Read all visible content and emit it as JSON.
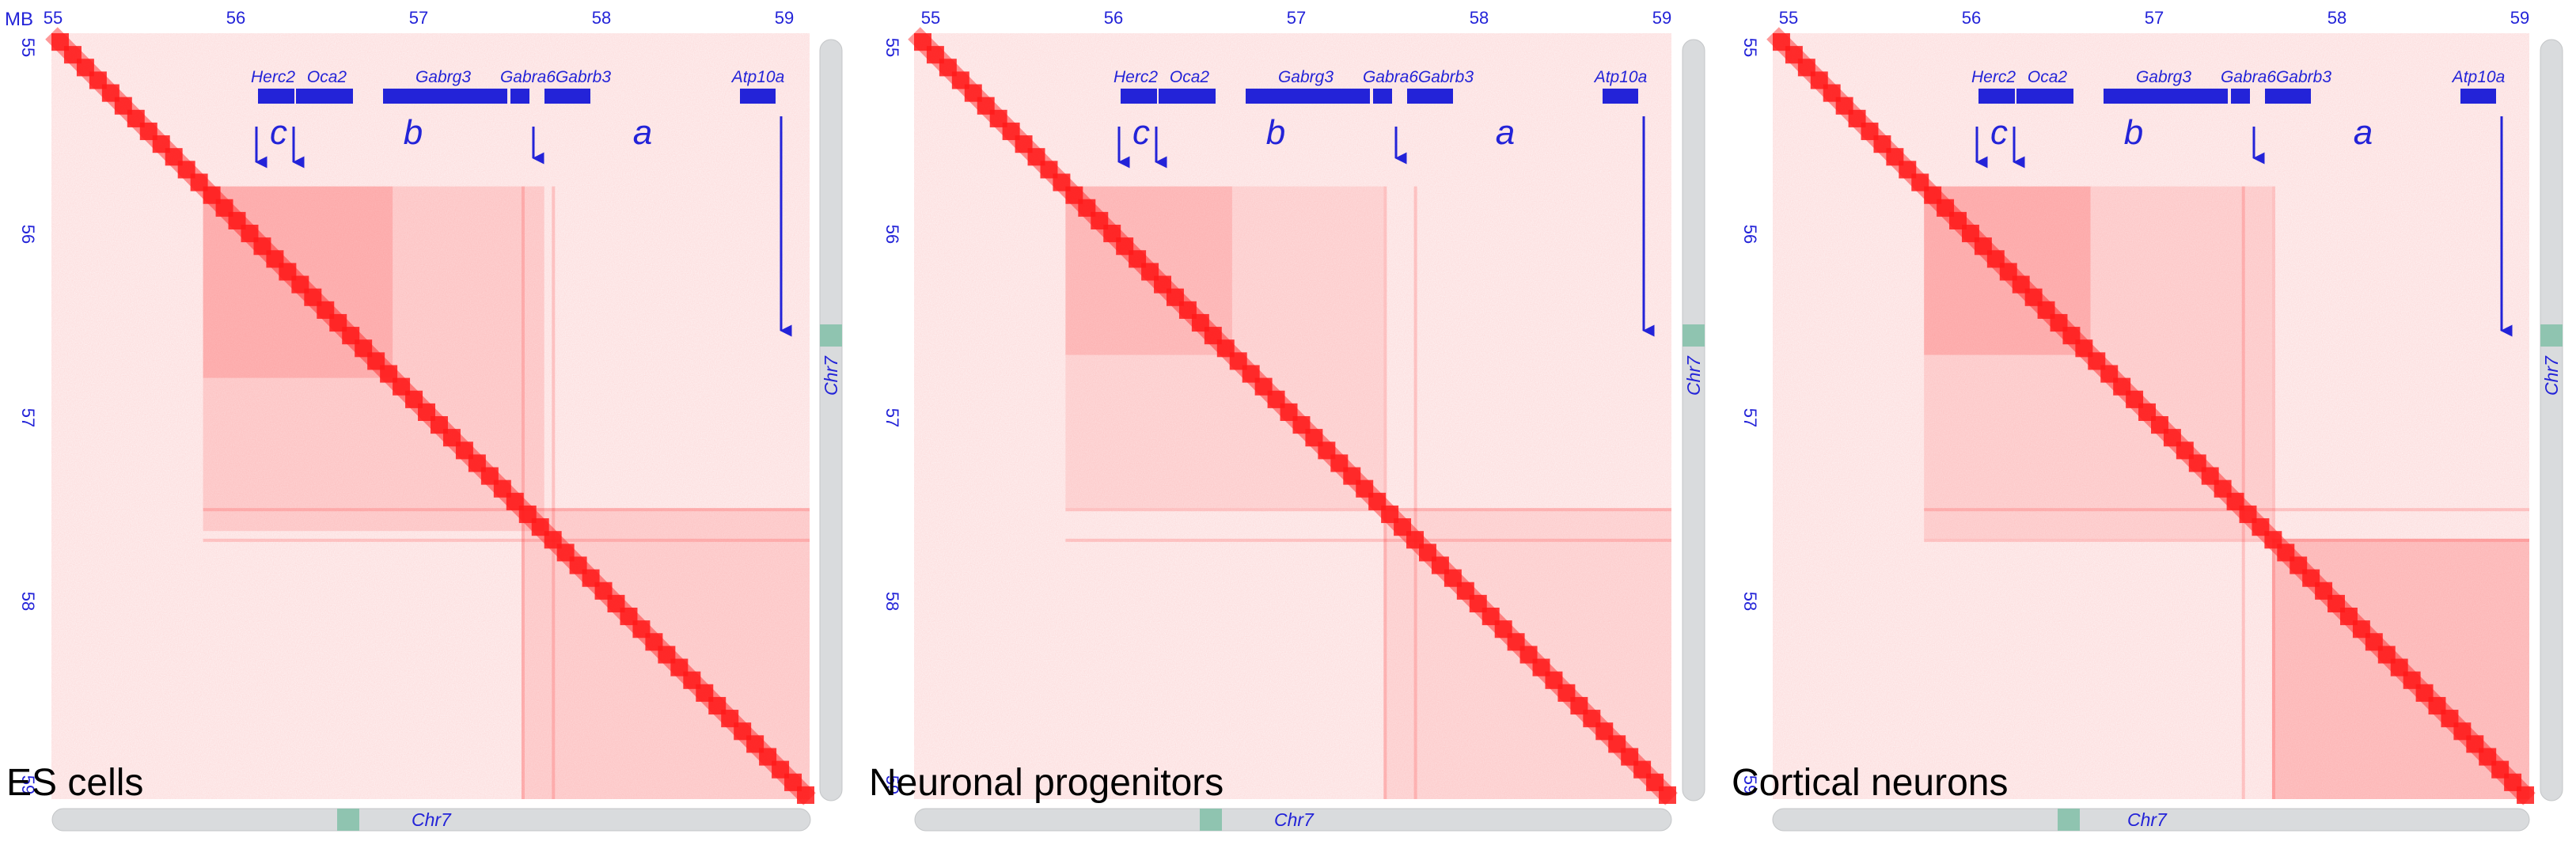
{
  "axis": {
    "unit_label": "MB",
    "ticks": [
      "55",
      "56",
      "57",
      "58",
      "59"
    ]
  },
  "chromosome": "Chr7",
  "genes": [
    "Herc2",
    "Oca2",
    "Gabrg3",
    "Gabra6",
    "Gabrb3",
    "Atp10a"
  ],
  "domains": [
    "c",
    "b",
    "a"
  ],
  "panels": [
    {
      "label": "ES cells"
    },
    {
      "label": "Neuronal progenitors"
    },
    {
      "label": "Cortical neurons"
    }
  ],
  "colors": {
    "heat": "#ff1a1a",
    "annotation": "#2323d8",
    "chromosome_bar": "#d9dbdd",
    "chromosome_marker": "#8fc4b0"
  }
}
